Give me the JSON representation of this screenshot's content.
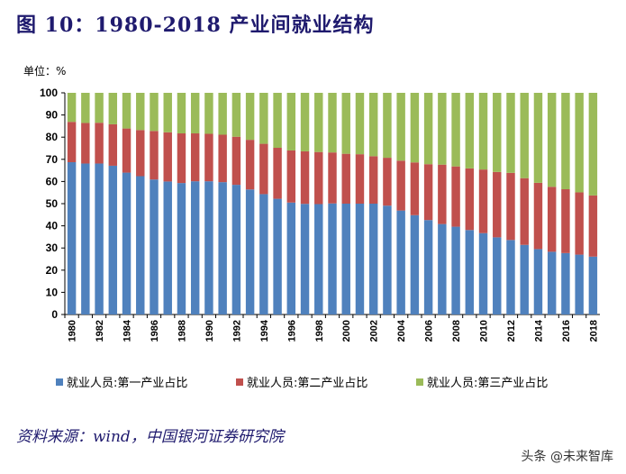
{
  "title": "图 10：1980-2018 产业间就业结构",
  "unit": "单位：%",
  "source": "资料来源：wind，中国银河证券研究院",
  "watermark": "头条 @未来智库",
  "chart_data": {
    "type": "bar",
    "stacked": true,
    "ylim": [
      0,
      100
    ],
    "yticks": [
      0,
      10,
      20,
      30,
      40,
      50,
      60,
      70,
      80,
      90,
      100
    ],
    "x": [
      1980,
      1981,
      1982,
      1983,
      1984,
      1985,
      1986,
      1987,
      1988,
      1989,
      1990,
      1991,
      1992,
      1993,
      1994,
      1995,
      1996,
      1997,
      1998,
      1999,
      2000,
      2001,
      2002,
      2003,
      2004,
      2005,
      2006,
      2007,
      2008,
      2009,
      2010,
      2011,
      2012,
      2013,
      2014,
      2015,
      2016,
      2017,
      2018
    ],
    "xticks": [
      "1980",
      "1982",
      "1984",
      "1986",
      "1988",
      "1990",
      "1992",
      "1994",
      "1996",
      "1998",
      "2000",
      "2002",
      "2004",
      "2006",
      "2008",
      "2010",
      "2012",
      "2014",
      "2016",
      "2018"
    ],
    "legend": "bottom",
    "series": [
      {
        "name": "就业人员:第一产业占比",
        "color": "#4f81bd",
        "values": [
          68.7,
          68.1,
          68.1,
          67.1,
          64.0,
          62.4,
          60.9,
          60.0,
          59.3,
          60.1,
          60.1,
          59.7,
          58.5,
          56.4,
          54.3,
          52.2,
          50.5,
          49.9,
          49.8,
          50.1,
          50.0,
          50.0,
          50.0,
          49.1,
          46.9,
          44.8,
          42.6,
          40.8,
          39.6,
          38.1,
          36.7,
          34.8,
          33.6,
          31.4,
          29.5,
          28.3,
          27.7,
          27.0,
          26.1
        ]
      },
      {
        "name": "就业人员:第二产业占比",
        "color": "#c0504d",
        "values": [
          18.2,
          18.3,
          18.4,
          18.7,
          19.9,
          20.8,
          21.9,
          22.2,
          22.4,
          21.6,
          21.4,
          21.4,
          21.7,
          22.4,
          22.7,
          23.0,
          23.5,
          23.7,
          23.5,
          23.0,
          22.5,
          22.3,
          21.4,
          21.6,
          22.5,
          23.8,
          25.2,
          26.8,
          27.2,
          27.8,
          28.7,
          29.5,
          30.3,
          30.1,
          29.9,
          29.3,
          28.8,
          28.1,
          27.6
        ]
      },
      {
        "name": "就业人员:第三产业占比",
        "color": "#9bbb59",
        "values": [
          13.1,
          13.6,
          13.5,
          14.2,
          16.1,
          16.8,
          17.2,
          17.8,
          18.3,
          18.3,
          18.5,
          18.9,
          19.8,
          21.2,
          23.0,
          24.8,
          26.0,
          26.4,
          26.7,
          26.9,
          27.5,
          27.7,
          28.6,
          29.3,
          30.6,
          31.4,
          32.2,
          32.4,
          33.2,
          34.1,
          34.6,
          35.7,
          36.1,
          38.5,
          40.6,
          42.4,
          43.5,
          44.9,
          46.3
        ]
      }
    ]
  }
}
